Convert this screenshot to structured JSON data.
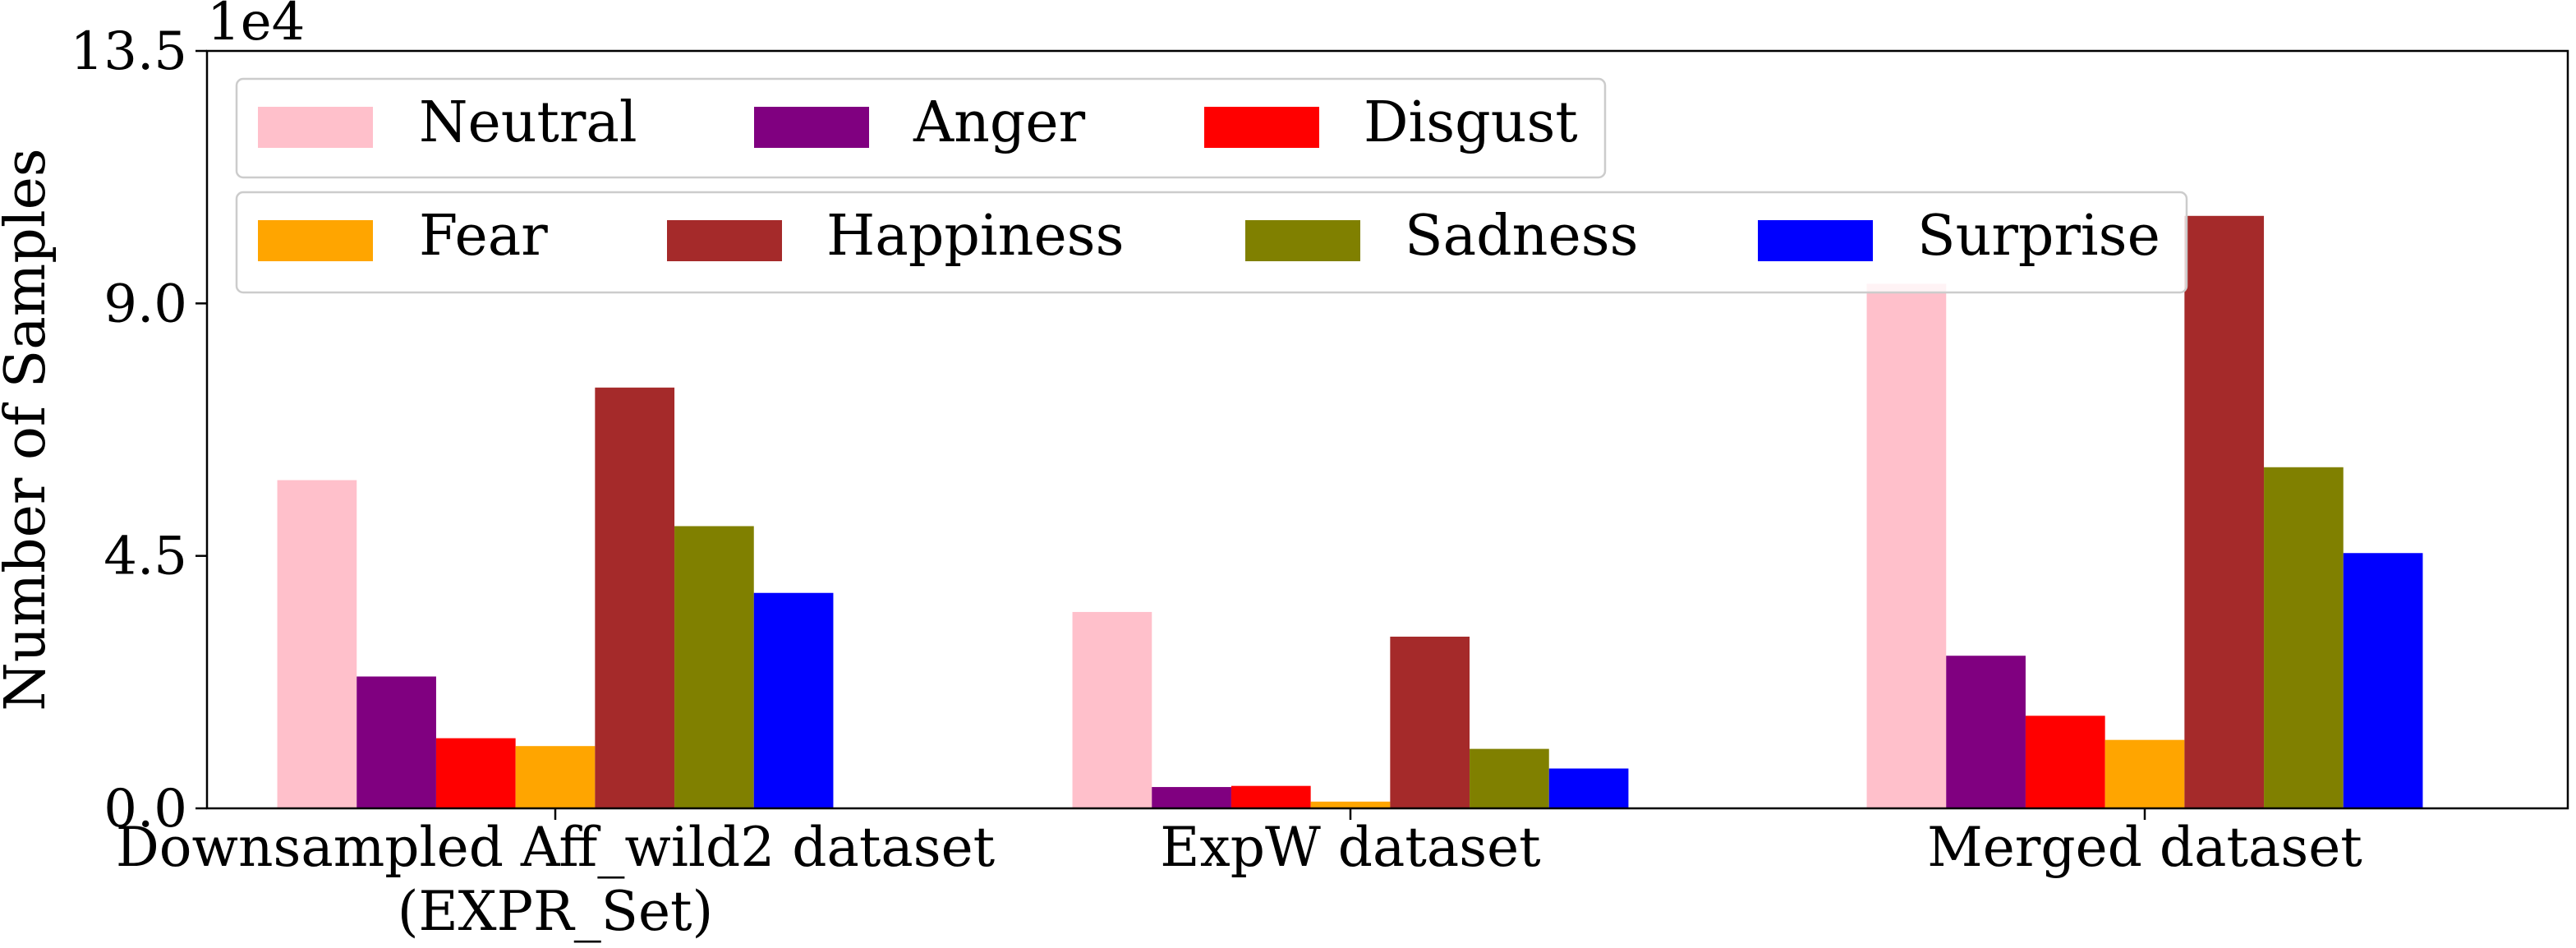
{
  "chart_data": {
    "type": "bar",
    "ylabel": "Number of Samples",
    "xlabel": "",
    "offset_text": "1e4",
    "scale": 10000,
    "ylim": [
      0,
      135000
    ],
    "yticks": [
      {
        "value": 0,
        "label": "0.0"
      },
      {
        "value": 45000,
        "label": "4.5"
      },
      {
        "value": 90000,
        "label": "9.0"
      },
      {
        "value": 135000,
        "label": "13.5"
      }
    ],
    "categories": [
      {
        "lines": [
          "Downsampled Aff_wild2 dataset",
          "(EXPR_Set)"
        ]
      },
      {
        "lines": [
          "ExpW dataset"
        ]
      },
      {
        "lines": [
          "Merged dataset"
        ]
      }
    ],
    "series": [
      {
        "name": "Neutral",
        "color": "#FFC0CB",
        "values": [
          58500,
          35000,
          93500
        ]
      },
      {
        "name": "Anger",
        "color": "#800080",
        "values": [
          23500,
          3800,
          27200
        ]
      },
      {
        "name": "Disgust",
        "color": "#FF0000",
        "values": [
          12500,
          4000,
          16500
        ]
      },
      {
        "name": "Fear",
        "color": "#FFA500",
        "values": [
          11100,
          1200,
          12200
        ]
      },
      {
        "name": "Happiness",
        "color": "#A52A2A",
        "values": [
          75000,
          30600,
          105600
        ]
      },
      {
        "name": "Sadness",
        "color": "#808000",
        "values": [
          50300,
          10600,
          60800
        ]
      },
      {
        "name": "Surprise",
        "color": "#0000FF",
        "values": [
          38400,
          7100,
          45500
        ]
      }
    ],
    "legend": {
      "placement": "top-left",
      "rows": [
        [
          "Neutral",
          "Anger",
          "Disgust"
        ],
        [
          "Fear",
          "Happiness",
          "Sadness",
          "Surprise"
        ]
      ]
    },
    "grid": false
  }
}
